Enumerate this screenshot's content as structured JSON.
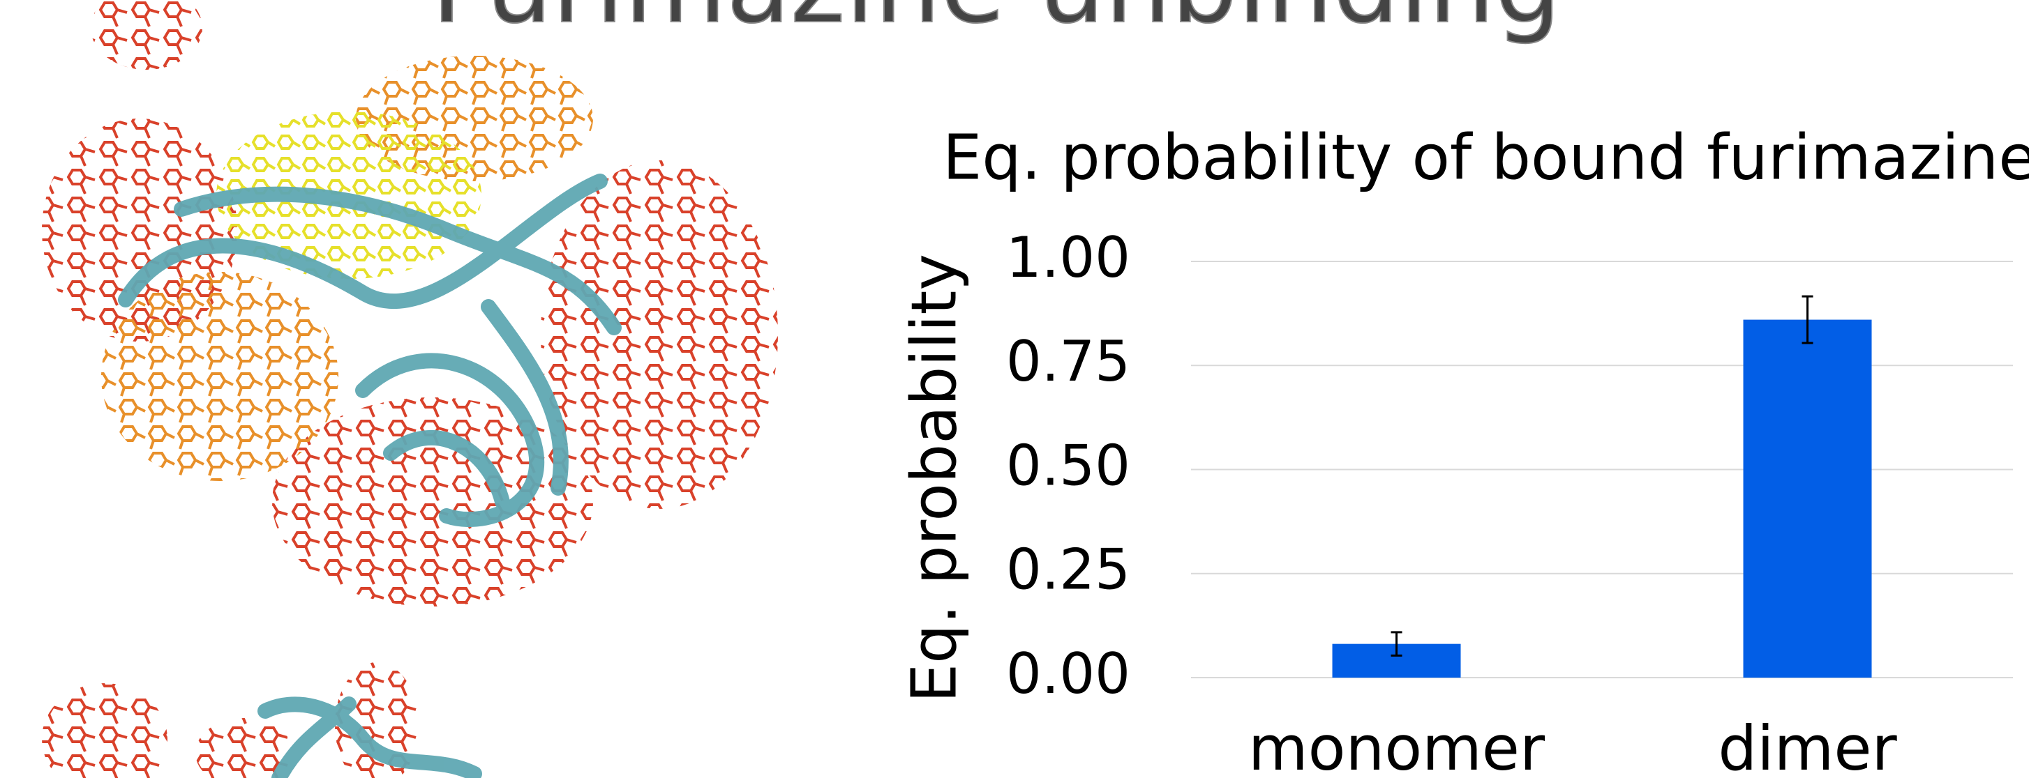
{
  "page_title": "Furimazine unbinding",
  "chart_data": {
    "type": "bar",
    "title": "Eq. probability of bound furimazine",
    "y_label": "Eq. probability",
    "categories": [
      "monomer",
      "dimer"
    ],
    "values": [
      0.081,
      0.86
    ],
    "errors": [
      0.028,
      0.056
    ],
    "color": "#025ee6",
    "ylim": [
      0,
      1
    ],
    "yticks": [
      {
        "value": 0,
        "label": "0.00"
      },
      0.25,
      {
        "value": 0.5,
        "label": "0.50"
      },
      0.75,
      {
        "value": 1,
        "label": "1.00"
      }
    ],
    "grid": true
  }
}
